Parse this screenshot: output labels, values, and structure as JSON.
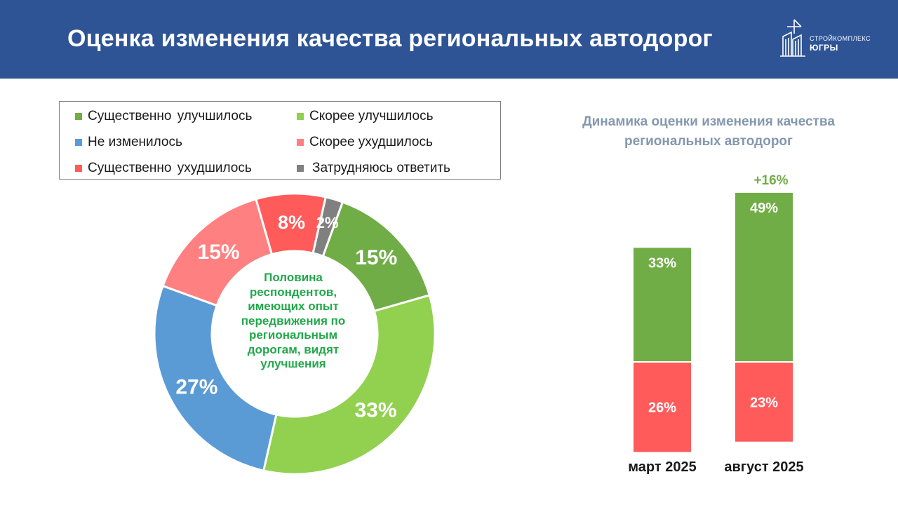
{
  "header": {
    "title": "Оценка изменения качества региональных автодорог",
    "logo_line1": "СТРОЙКОМПЛЕКС",
    "logo_line2": "ЮГРЫ"
  },
  "colors": {
    "header_bg": "#2e5496",
    "strong_improve": "#70ad47",
    "improve": "#92d050",
    "unchanged": "#5b9bd5",
    "worse": "#ff8080",
    "strong_worse": "#ff5b5b",
    "unsure": "#808080",
    "note_green": "#21a84a",
    "subtitle_gray": "#8497b0"
  },
  "legend": [
    {
      "label": "Существенно улучшилось",
      "color": "#70ad47"
    },
    {
      "label": "Скорее улучшилось",
      "color": "#92d050"
    },
    {
      "label": "Не изменилось",
      "color": "#5b9bd5"
    },
    {
      "label": "Скорее ухудшилось",
      "color": "#ff8080"
    },
    {
      "label": "Существенно ухудшилось",
      "color": "#ff5b5b"
    },
    {
      "label": "Затрудняюсь ответить",
      "color": "#808080"
    }
  ],
  "center_note": "Половина респондентов, имеющих опыт передвижения по региональным дорогам, видят улучшения",
  "bars_title": "Динамика оценки изменения качества региональных автодорог",
  "chart_data": [
    {
      "type": "pie",
      "categories": [
        "Существенно улучшилось",
        "Скорее улучшилось",
        "Не изменилось",
        "Скорее ухудшилось",
        "Существенно ухудшилось",
        "Затрудняюсь ответить"
      ],
      "values": [
        15,
        33,
        27,
        15,
        8,
        2
      ],
      "labels": [
        "15%",
        "33%",
        "27%",
        "15%",
        "8%",
        "2%"
      ],
      "colors": [
        "#70ad47",
        "#92d050",
        "#5b9bd5",
        "#ff8080",
        "#ff5b5b",
        "#808080"
      ],
      "start_angle_deg": 20,
      "direction": "clockwise"
    },
    {
      "type": "bar",
      "title": "Динамика оценки изменения качества региональных автодорог",
      "categories": [
        "март 2025",
        "август 2025"
      ],
      "series": [
        {
          "values": [
            33,
            49
          ],
          "labels": [
            "33%",
            "49%"
          ],
          "color": "#70ad47"
        },
        {
          "values": [
            26,
            23
          ],
          "labels": [
            "26%",
            "23%"
          ],
          "color": "#ff5b5b"
        }
      ],
      "annotation": {
        "text": "+16%",
        "category": "август 2025",
        "color": "#70ad47"
      }
    }
  ]
}
